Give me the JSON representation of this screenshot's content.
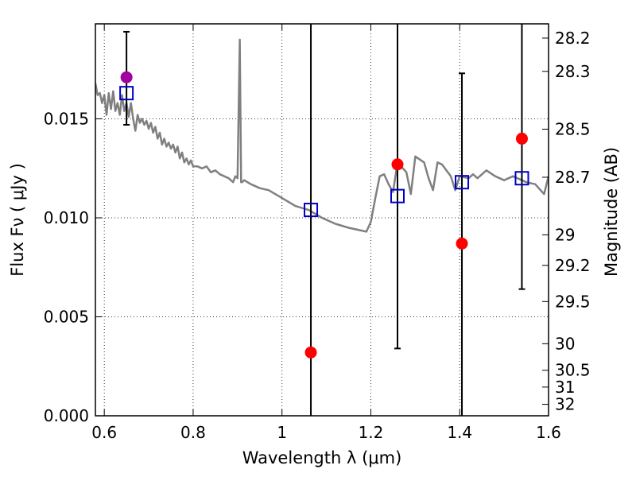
{
  "chart_data": {
    "type": "scatter",
    "xlabel": "Wavelength  λ (μm)",
    "ylabel": "Flux  Fν  ( μJy )",
    "ylabel_right": "Magnitude (AB)",
    "xlim": [
      0.58,
      1.6
    ],
    "ylim": [
      0.0,
      0.0198
    ],
    "grid": true,
    "x_ticks": [
      0.6,
      0.8,
      1.0,
      1.2,
      1.4,
      1.6
    ],
    "x_tick_labels": [
      "0.6",
      "0.8",
      "1",
      "1.2",
      "1.4",
      "1.6"
    ],
    "y_ticks": [
      0.0,
      0.005,
      0.01,
      0.015
    ],
    "y_tick_labels": [
      "0.000",
      "0.005",
      "0.010",
      "0.015"
    ],
    "right_ticks": [
      {
        "label": "28.2",
        "flux": 0.01908
      },
      {
        "label": "28.3",
        "flux": 0.0174
      },
      {
        "label": "28.5",
        "flux": 0.01448
      },
      {
        "label": "28.7",
        "flux": 0.01205
      },
      {
        "label": "29",
        "flux": 0.00914
      },
      {
        "label": "29.2",
        "flux": 0.0076
      },
      {
        "label": "29.5",
        "flux": 0.00577
      },
      {
        "label": "30",
        "flux": 0.00364
      },
      {
        "label": "30.5",
        "flux": 0.0023
      },
      {
        "label": "31",
        "flux": 0.00145
      },
      {
        "label": "32",
        "flux": 0.00058
      }
    ],
    "series": [
      {
        "kind": "line",
        "color": "#808080",
        "x": [
          0.58,
          0.585,
          0.59,
          0.595,
          0.6,
          0.605,
          0.61,
          0.615,
          0.62,
          0.625,
          0.63,
          0.635,
          0.64,
          0.645,
          0.65,
          0.655,
          0.66,
          0.665,
          0.67,
          0.675,
          0.68,
          0.685,
          0.69,
          0.695,
          0.7,
          0.705,
          0.71,
          0.715,
          0.72,
          0.725,
          0.73,
          0.735,
          0.74,
          0.745,
          0.75,
          0.755,
          0.76,
          0.765,
          0.77,
          0.775,
          0.78,
          0.785,
          0.79,
          0.795,
          0.8,
          0.81,
          0.82,
          0.83,
          0.84,
          0.85,
          0.86,
          0.87,
          0.88,
          0.885,
          0.89,
          0.895,
          0.9,
          0.905,
          0.908,
          0.91,
          0.915,
          0.93,
          0.95,
          0.97,
          1.0,
          1.03,
          1.06,
          1.09,
          1.12,
          1.15,
          1.19,
          1.2,
          1.21,
          1.22,
          1.23,
          1.24,
          1.25,
          1.26,
          1.28,
          1.29,
          1.3,
          1.32,
          1.33,
          1.34,
          1.35,
          1.36,
          1.38,
          1.39,
          1.4,
          1.42,
          1.43,
          1.44,
          1.46,
          1.48,
          1.5,
          1.52,
          1.55,
          1.57,
          1.59,
          1.6
        ],
        "y": [
          0.0168,
          0.0162,
          0.0163,
          0.0158,
          0.0162,
          0.0152,
          0.0163,
          0.0155,
          0.0164,
          0.0154,
          0.0158,
          0.0152,
          0.0162,
          0.0154,
          0.0158,
          0.0151,
          0.0158,
          0.015,
          0.0144,
          0.0152,
          0.0148,
          0.015,
          0.0147,
          0.0149,
          0.0145,
          0.0148,
          0.0143,
          0.0146,
          0.014,
          0.0143,
          0.0137,
          0.014,
          0.0136,
          0.0138,
          0.0135,
          0.0137,
          0.0133,
          0.0136,
          0.013,
          0.0133,
          0.0128,
          0.013,
          0.0127,
          0.0129,
          0.0126,
          0.0126,
          0.0125,
          0.0126,
          0.0123,
          0.0124,
          0.0122,
          0.0121,
          0.012,
          0.0119,
          0.0118,
          0.0121,
          0.012,
          0.019,
          0.0118,
          0.0118,
          0.0119,
          0.0117,
          0.0115,
          0.0114,
          0.011,
          0.0106,
          0.0104,
          0.01,
          0.0097,
          0.0095,
          0.0093,
          0.0098,
          0.011,
          0.0121,
          0.0122,
          0.0117,
          0.0113,
          0.0128,
          0.0123,
          0.0112,
          0.0131,
          0.0128,
          0.012,
          0.0114,
          0.0128,
          0.0127,
          0.0121,
          0.0114,
          0.0121,
          0.012,
          0.0122,
          0.012,
          0.0124,
          0.0121,
          0.0119,
          0.0121,
          0.0118,
          0.0117,
          0.0112,
          0.0121
        ]
      },
      {
        "kind": "points",
        "marker": "circle",
        "color": "#ff0000",
        "x": [
          0.65,
          1.065,
          1.26,
          1.405,
          1.54
        ],
        "y": [
          0.0171,
          0.0032,
          0.0127,
          0.0087,
          0.014
        ],
        "yerr_low": [
          0.0147,
          0.0,
          0.0034,
          0.0,
          0.0064
        ],
        "yerr_high": [
          0.0194,
          0.0198,
          0.0198,
          0.0173,
          0.0198
        ]
      },
      {
        "kind": "points",
        "marker": "square-open",
        "color": "#0000cc",
        "x": [
          0.65,
          1.065,
          1.26,
          1.405,
          1.54
        ],
        "y": [
          0.0163,
          0.0104,
          0.0111,
          0.0118,
          0.012
        ]
      }
    ]
  }
}
